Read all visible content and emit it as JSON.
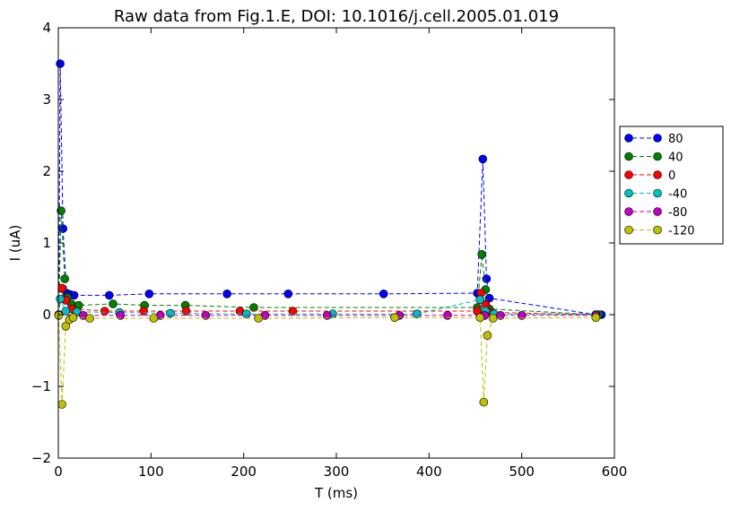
{
  "chart_data": {
    "type": "line",
    "title": "Raw data from Fig.1.E, DOI: 10.1016/j.cell.2005.01.019",
    "xlabel": "T (ms)",
    "ylabel": "I (uA)",
    "xlim": [
      0,
      600
    ],
    "ylim": [
      -2,
      4
    ],
    "xticks": [
      "0",
      "100",
      "200",
      "300",
      "400",
      "500",
      "600"
    ],
    "yticks": [
      "−2",
      "−1",
      "0",
      "1",
      "2",
      "3",
      "4"
    ],
    "grid": false,
    "legend_position": "right-outside",
    "line_style": "dashed",
    "marker": "circle",
    "series": [
      {
        "name": "80",
        "color": "#0000ff",
        "points": [
          [
            0.5,
            0.0
          ],
          [
            2,
            3.5
          ],
          [
            5,
            1.2
          ],
          [
            9,
            0.3
          ],
          [
            13,
            0.28
          ],
          [
            17,
            0.27
          ],
          [
            55,
            0.27
          ],
          [
            98,
            0.29
          ],
          [
            182,
            0.29
          ],
          [
            248,
            0.29
          ],
          [
            351,
            0.29
          ],
          [
            452,
            0.3
          ],
          [
            458,
            2.17
          ],
          [
            462,
            0.5
          ],
          [
            465,
            0.23
          ],
          [
            580,
            0.0
          ],
          [
            583,
            0.0
          ],
          [
            586,
            0.0
          ]
        ]
      },
      {
        "name": "40",
        "color": "#008000",
        "points": [
          [
            0.5,
            0.0
          ],
          [
            3,
            1.45
          ],
          [
            7,
            0.5
          ],
          [
            10,
            0.24
          ],
          [
            14,
            0.15
          ],
          [
            22,
            0.13
          ],
          [
            59,
            0.15
          ],
          [
            93,
            0.13
          ],
          [
            137,
            0.13
          ],
          [
            211,
            0.1
          ],
          [
            452,
            0.1
          ],
          [
            457,
            0.84
          ],
          [
            461,
            0.35
          ],
          [
            465,
            0.08
          ],
          [
            580,
            0.0
          ],
          [
            583,
            0.0
          ]
        ]
      },
      {
        "name": "0",
        "color": "#ff0000",
        "points": [
          [
            0.5,
            0.0
          ],
          [
            4,
            0.37
          ],
          [
            8,
            0.2
          ],
          [
            15,
            0.08
          ],
          [
            50,
            0.05
          ],
          [
            92,
            0.05
          ],
          [
            138,
            0.05
          ],
          [
            196,
            0.05
          ],
          [
            253,
            0.05
          ],
          [
            452,
            0.05
          ],
          [
            456,
            0.3
          ],
          [
            461,
            0.14
          ],
          [
            467,
            0.03
          ],
          [
            580,
            0.0
          ]
        ]
      },
      {
        "name": "-40",
        "color": "#00bfbf",
        "points": [
          [
            0.5,
            0.0
          ],
          [
            2,
            0.22
          ],
          [
            8,
            0.05
          ],
          [
            20,
            0.04
          ],
          [
            66,
            0.03
          ],
          [
            121,
            0.02
          ],
          [
            203,
            0.01
          ],
          [
            296,
            0.01
          ],
          [
            387,
            0.01
          ],
          [
            455,
            0.21
          ],
          [
            461,
            0.05
          ],
          [
            470,
            0.01
          ],
          [
            580,
            0.0
          ]
        ]
      },
      {
        "name": "-80",
        "color": "#bf00bf",
        "points": [
          [
            0.5,
            0.0
          ],
          [
            27,
            -0.01
          ],
          [
            67,
            -0.01
          ],
          [
            110,
            -0.01
          ],
          [
            159,
            -0.01
          ],
          [
            223,
            -0.01
          ],
          [
            290,
            -0.01
          ],
          [
            368,
            -0.01
          ],
          [
            420,
            -0.01
          ],
          [
            460,
            -0.01
          ],
          [
            477,
            -0.01
          ],
          [
            500,
            -0.01
          ],
          [
            580,
            -0.01
          ]
        ]
      },
      {
        "name": "-120",
        "color": "#bfbf00",
        "points": [
          [
            0.5,
            -0.01
          ],
          [
            4,
            -1.25
          ],
          [
            8,
            -0.16
          ],
          [
            12,
            -0.07
          ],
          [
            16,
            -0.04
          ],
          [
            34,
            -0.05
          ],
          [
            103,
            -0.05
          ],
          [
            216,
            -0.05
          ],
          [
            363,
            -0.04
          ],
          [
            455,
            -0.04
          ],
          [
            459,
            -1.22
          ],
          [
            463,
            -0.29
          ],
          [
            469,
            -0.05
          ],
          [
            580,
            -0.04
          ]
        ]
      }
    ]
  }
}
